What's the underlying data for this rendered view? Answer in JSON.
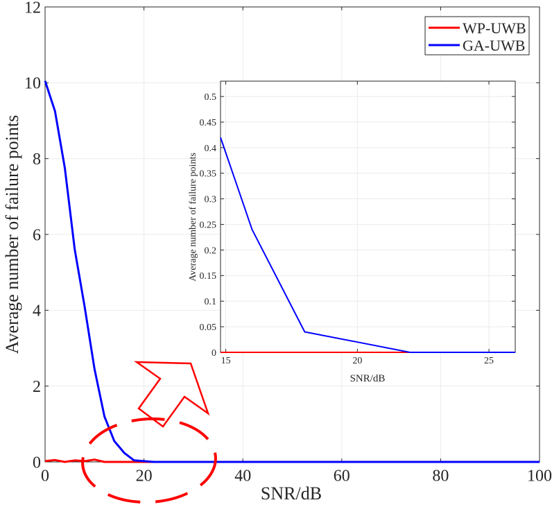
{
  "chart_data": [
    {
      "id": "main",
      "type": "line",
      "title": "",
      "xlabel": "SNR/dB",
      "ylabel": "Average number of failure points",
      "xlim": [
        0,
        100
      ],
      "ylim": [
        0,
        12
      ],
      "xticks": [
        0,
        20,
        40,
        60,
        80,
        100
      ],
      "yticks": [
        0,
        2,
        4,
        6,
        8,
        10,
        12
      ],
      "grid": true,
      "legend_position": "upper right",
      "series": [
        {
          "name": "WP-UWB",
          "color": "#ff0000",
          "x": [
            0,
            2,
            4,
            6,
            8,
            10,
            12,
            14,
            16,
            18,
            20,
            22,
            24,
            100
          ],
          "y": [
            0.02,
            0.05,
            0.0,
            0.04,
            0.02,
            0.06,
            0.0,
            0.0,
            0.0,
            0.0,
            0.0,
            0.0,
            0.0,
            0.0
          ]
        },
        {
          "name": "GA-UWB",
          "color": "#0000ff",
          "x": [
            0,
            2,
            4,
            6,
            8,
            10,
            12,
            14,
            16,
            18,
            20,
            22,
            24,
            100
          ],
          "y": [
            10.05,
            9.25,
            7.75,
            5.6,
            4.1,
            2.45,
            1.2,
            0.55,
            0.24,
            0.04,
            0.02,
            0.0,
            0.0,
            0.0
          ]
        }
      ]
    },
    {
      "id": "inset",
      "type": "line",
      "title": "",
      "xlabel": "SNR/dB",
      "ylabel": "Average number of failure points",
      "xlim": [
        14.8,
        26
      ],
      "ylim": [
        0,
        0.53
      ],
      "xticks": [
        15,
        20,
        25
      ],
      "yticks": [
        0,
        0.05,
        0.1,
        0.15,
        0.2,
        0.25,
        0.3,
        0.35,
        0.4,
        0.45,
        0.5
      ],
      "grid": true,
      "series": [
        {
          "name": "WP-UWB",
          "color": "#ff0000",
          "x": [
            14.8,
            22,
            26
          ],
          "y": [
            0,
            0,
            0
          ]
        },
        {
          "name": "GA-UWB",
          "color": "#0000ff",
          "x": [
            14.8,
            16,
            18,
            20,
            22,
            26
          ],
          "y": [
            0.42,
            0.24,
            0.04,
            0.02,
            0.0,
            0.0
          ]
        }
      ]
    }
  ],
  "annotations": {
    "zoom_ellipse": {
      "description": "dashed red ellipse around SNR 10-30 dB near zero",
      "color": "#ff0000"
    },
    "zoom_arrow": {
      "description": "hollow red arrow pointing up-right toward inset",
      "color": "#ff0000"
    }
  },
  "labels": {
    "main_xlabel": "SNR/dB",
    "main_ylabel": "Average number of failure points",
    "inset_xlabel": "SNR/dB",
    "inset_ylabel": "Average number of failure points",
    "legend_wp": "WP-UWB",
    "legend_ga": "GA-UWB"
  }
}
